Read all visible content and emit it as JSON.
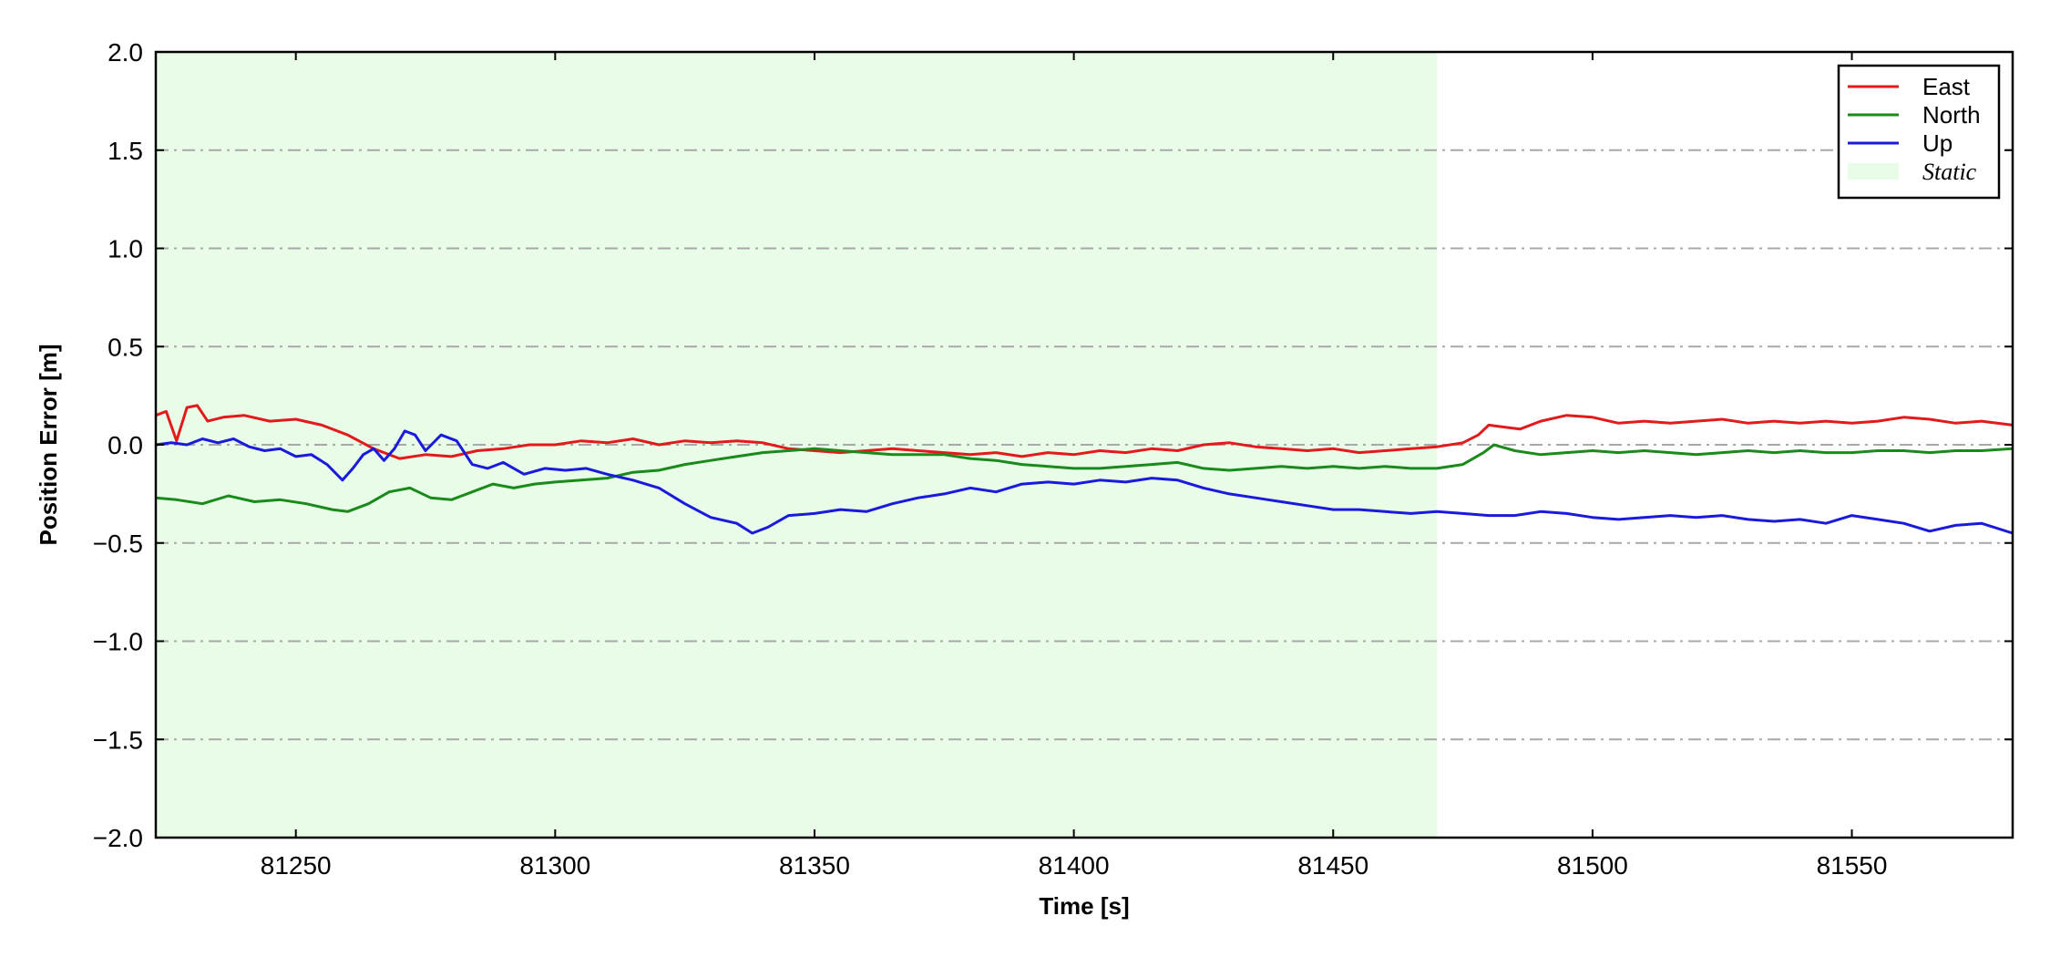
{
  "chart_data": {
    "type": "line",
    "title": "",
    "xlabel": "Time [s]",
    "ylabel": "Position Error [m]",
    "xlim": [
      81223,
      81581
    ],
    "ylim": [
      -2.0,
      2.0
    ],
    "x_ticks": [
      81250,
      81300,
      81350,
      81400,
      81450,
      81500,
      81550
    ],
    "x_tick_labels": [
      "81250",
      "81300",
      "81350",
      "81400",
      "81450",
      "81500",
      "81550"
    ],
    "y_ticks": [
      -2.0,
      -1.5,
      -1.0,
      -0.5,
      0.0,
      0.5,
      1.0,
      1.5,
      2.0
    ],
    "y_tick_labels": [
      "−2.0",
      "−1.5",
      "−1.0",
      "−0.5",
      "0.0",
      "0.5",
      "1.0",
      "1.5",
      "2.0"
    ],
    "grid": "horizontal dash-dot",
    "legend_position": "top-right",
    "static_region": {
      "label": "Static",
      "x_start": 81223,
      "x_end": 81470,
      "color": "#e8fce8"
    },
    "series": [
      {
        "name": "East",
        "color": "#e31a1c",
        "x": [
          81223,
          81225,
          81227,
          81229,
          81231,
          81233,
          81236,
          81240,
          81245,
          81250,
          81255,
          81260,
          81265,
          81270,
          81275,
          81280,
          81285,
          81290,
          81295,
          81300,
          81305,
          81310,
          81315,
          81320,
          81325,
          81330,
          81335,
          81340,
          81345,
          81350,
          81355,
          81360,
          81365,
          81370,
          81375,
          81380,
          81385,
          81390,
          81395,
          81400,
          81405,
          81410,
          81415,
          81420,
          81425,
          81430,
          81435,
          81440,
          81445,
          81450,
          81455,
          81460,
          81465,
          81470,
          81475,
          81478,
          81480,
          81483,
          81486,
          81490,
          81495,
          81500,
          81505,
          81510,
          81515,
          81520,
          81525,
          81530,
          81535,
          81540,
          81545,
          81550,
          81555,
          81560,
          81565,
          81570,
          81575,
          81581
        ],
        "y": [
          0.15,
          0.17,
          0.02,
          0.19,
          0.2,
          0.12,
          0.14,
          0.15,
          0.12,
          0.13,
          0.1,
          0.05,
          -0.02,
          -0.07,
          -0.05,
          -0.06,
          -0.03,
          -0.02,
          0.0,
          0.0,
          0.02,
          0.01,
          0.03,
          0.0,
          0.02,
          0.01,
          0.02,
          0.01,
          -0.02,
          -0.03,
          -0.04,
          -0.03,
          -0.02,
          -0.03,
          -0.04,
          -0.05,
          -0.04,
          -0.06,
          -0.04,
          -0.05,
          -0.03,
          -0.04,
          -0.02,
          -0.03,
          0.0,
          0.01,
          -0.01,
          -0.02,
          -0.03,
          -0.02,
          -0.04,
          -0.03,
          -0.02,
          -0.01,
          0.01,
          0.05,
          0.1,
          0.09,
          0.08,
          0.12,
          0.15,
          0.14,
          0.11,
          0.12,
          0.11,
          0.12,
          0.13,
          0.11,
          0.12,
          0.11,
          0.12,
          0.11,
          0.12,
          0.14,
          0.13,
          0.11,
          0.12,
          0.1
        ]
      },
      {
        "name": "North",
        "color": "#1a8a1a",
        "x": [
          81223,
          81227,
          81232,
          81237,
          81242,
          81247,
          81252,
          81257,
          81260,
          81264,
          81268,
          81272,
          81276,
          81280,
          81284,
          81288,
          81292,
          81296,
          81300,
          81305,
          81310,
          81315,
          81320,
          81325,
          81330,
          81335,
          81340,
          81345,
          81350,
          81355,
          81360,
          81365,
          81370,
          81375,
          81380,
          81385,
          81390,
          81395,
          81400,
          81405,
          81410,
          81415,
          81420,
          81425,
          81430,
          81435,
          81440,
          81445,
          81450,
          81455,
          81460,
          81465,
          81470,
          81475,
          81479,
          81481,
          81485,
          81490,
          81495,
          81500,
          81505,
          81510,
          81515,
          81520,
          81525,
          81530,
          81535,
          81540,
          81545,
          81550,
          81555,
          81560,
          81565,
          81570,
          81575,
          81581
        ],
        "y": [
          -0.27,
          -0.28,
          -0.3,
          -0.26,
          -0.29,
          -0.28,
          -0.3,
          -0.33,
          -0.34,
          -0.3,
          -0.24,
          -0.22,
          -0.27,
          -0.28,
          -0.24,
          -0.2,
          -0.22,
          -0.2,
          -0.19,
          -0.18,
          -0.17,
          -0.14,
          -0.13,
          -0.1,
          -0.08,
          -0.06,
          -0.04,
          -0.03,
          -0.02,
          -0.03,
          -0.04,
          -0.05,
          -0.05,
          -0.05,
          -0.07,
          -0.08,
          -0.1,
          -0.11,
          -0.12,
          -0.12,
          -0.11,
          -0.1,
          -0.09,
          -0.12,
          -0.13,
          -0.12,
          -0.11,
          -0.12,
          -0.11,
          -0.12,
          -0.11,
          -0.12,
          -0.12,
          -0.1,
          -0.04,
          0.0,
          -0.03,
          -0.05,
          -0.04,
          -0.03,
          -0.04,
          -0.03,
          -0.04,
          -0.05,
          -0.04,
          -0.03,
          -0.04,
          -0.03,
          -0.04,
          -0.04,
          -0.03,
          -0.03,
          -0.04,
          -0.03,
          -0.03,
          -0.02
        ]
      },
      {
        "name": "Up",
        "color": "#1a1adc",
        "x": [
          81223,
          81226,
          81229,
          81232,
          81235,
          81238,
          81241,
          81244,
          81247,
          81250,
          81253,
          81256,
          81259,
          81261,
          81263,
          81265,
          81267,
          81269,
          81271,
          81273,
          81275,
          81278,
          81281,
          81284,
          81287,
          81290,
          81294,
          81298,
          81302,
          81306,
          81310,
          81315,
          81320,
          81325,
          81330,
          81335,
          81338,
          81341,
          81345,
          81350,
          81355,
          81360,
          81365,
          81370,
          81375,
          81380,
          81385,
          81390,
          81395,
          81400,
          81405,
          81410,
          81415,
          81420,
          81425,
          81430,
          81435,
          81440,
          81445,
          81450,
          81455,
          81460,
          81465,
          81470,
          81475,
          81480,
          81485,
          81490,
          81495,
          81500,
          81505,
          81510,
          81515,
          81520,
          81525,
          81530,
          81535,
          81540,
          81545,
          81550,
          81555,
          81560,
          81565,
          81570,
          81575,
          81581
        ],
        "y": [
          0.0,
          0.01,
          0.0,
          0.03,
          0.01,
          0.03,
          -0.01,
          -0.03,
          -0.02,
          -0.06,
          -0.05,
          -0.1,
          -0.18,
          -0.12,
          -0.05,
          -0.02,
          -0.08,
          -0.02,
          0.07,
          0.05,
          -0.03,
          0.05,
          0.02,
          -0.1,
          -0.12,
          -0.09,
          -0.15,
          -0.12,
          -0.13,
          -0.12,
          -0.15,
          -0.18,
          -0.22,
          -0.3,
          -0.37,
          -0.4,
          -0.45,
          -0.42,
          -0.36,
          -0.35,
          -0.33,
          -0.34,
          -0.3,
          -0.27,
          -0.25,
          -0.22,
          -0.24,
          -0.2,
          -0.19,
          -0.2,
          -0.18,
          -0.19,
          -0.17,
          -0.18,
          -0.22,
          -0.25,
          -0.27,
          -0.29,
          -0.31,
          -0.33,
          -0.33,
          -0.34,
          -0.35,
          -0.34,
          -0.35,
          -0.36,
          -0.36,
          -0.34,
          -0.35,
          -0.37,
          -0.38,
          -0.37,
          -0.36,
          -0.37,
          -0.36,
          -0.38,
          -0.39,
          -0.38,
          -0.4,
          -0.36,
          -0.38,
          -0.4,
          -0.44,
          -0.41,
          -0.4,
          -0.45
        ]
      }
    ]
  }
}
